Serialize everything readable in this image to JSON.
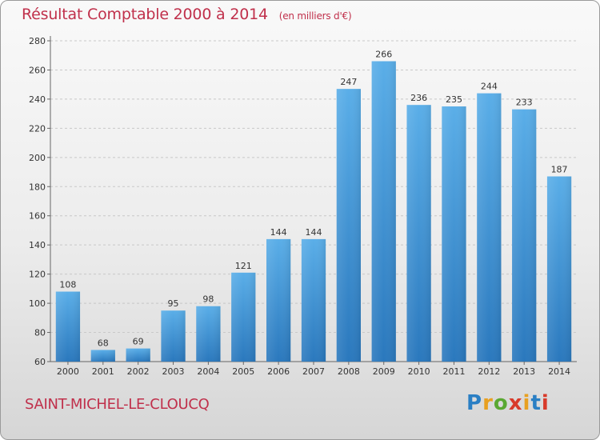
{
  "header": {
    "title": "Résultat Comptable 2000 à 2014",
    "unit": "(en milliers d'€)"
  },
  "footer": {
    "town": "SAINT-MICHEL-LE-CLOUCQ",
    "logo_letters": [
      "P",
      "r",
      "o",
      "x",
      "i",
      "t",
      "i"
    ],
    "logo_colors": [
      "#2a7fc4",
      "#e8a020",
      "#5aa832",
      "#d83a2a",
      "#e8a020",
      "#2a7fc4",
      "#d83a2a"
    ]
  },
  "chart_data": {
    "type": "bar",
    "title": "Résultat Comptable 2000 à 2014",
    "subtitle": "(en milliers d'€)",
    "xlabel": "",
    "ylabel": "",
    "categories": [
      "2000",
      "2001",
      "2002",
      "2003",
      "2004",
      "2005",
      "2006",
      "2007",
      "2008",
      "2009",
      "2010",
      "2011",
      "2012",
      "2013",
      "2014"
    ],
    "values": [
      108,
      68,
      69,
      95,
      98,
      121,
      144,
      144,
      247,
      266,
      236,
      235,
      244,
      233,
      187
    ],
    "ylim": [
      60,
      280
    ],
    "yticks": [
      60,
      80,
      100,
      120,
      140,
      160,
      180,
      200,
      220,
      240,
      260,
      280
    ],
    "grid": true,
    "bar_color": "#3a8fd6"
  }
}
